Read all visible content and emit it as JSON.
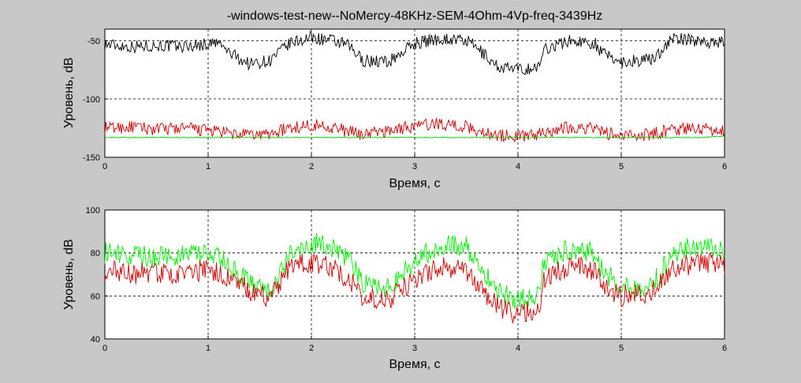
{
  "window": {
    "background": "#c8c8c8"
  },
  "title": "-windows-test-new--NoMercy-48KHz-SEM-4Ohm-4Vp-freq-3439Hz",
  "chart_data": [
    {
      "type": "line",
      "xlabel": "Время, с",
      "ylabel": "Уровень, dB",
      "xlim": [
        0,
        6
      ],
      "ylim": [
        -150,
        -40
      ],
      "xticks": [
        "0",
        "1",
        "2",
        "3",
        "4",
        "5",
        "6"
      ],
      "yticks": [
        "-150",
        "-100",
        "-50"
      ],
      "ytick_values": [
        -150,
        -100,
        -50
      ],
      "grid": true,
      "x": [
        0,
        0.25,
        0.5,
        0.75,
        1.0,
        1.1,
        1.2,
        1.4,
        1.6,
        1.7,
        1.8,
        2.0,
        2.2,
        2.35,
        2.5,
        2.75,
        3.0,
        3.25,
        3.5,
        3.6,
        3.8,
        4.0,
        4.2,
        4.25,
        4.5,
        4.75,
        4.8,
        5.0,
        5.3,
        5.5,
        5.75,
        6.0
      ],
      "series": [
        {
          "color": "#000000",
          "values": [
            -53,
            -55,
            -54,
            -55,
            -53,
            -52,
            -60,
            -70,
            -67,
            -59,
            -52,
            -47,
            -50,
            -54,
            -67,
            -68,
            -52,
            -48,
            -50,
            -56,
            -72,
            -75,
            -73,
            -57,
            -50,
            -52,
            -60,
            -68,
            -66,
            -48,
            -50,
            -52
          ]
        },
        {
          "color": "#cc0000",
          "values": [
            -125,
            -124,
            -126,
            -125,
            -127,
            -128,
            -130,
            -131,
            -130,
            -127,
            -125,
            -122,
            -124,
            -128,
            -130,
            -127,
            -123,
            -121,
            -124,
            -127,
            -131,
            -132,
            -130,
            -128,
            -124,
            -125,
            -128,
            -132,
            -130,
            -126,
            -125,
            -127
          ]
        },
        {
          "color": "#00cc00",
          "values": [
            -133,
            -133,
            -133,
            -133,
            -133,
            -133,
            -133,
            -133,
            -133,
            -133,
            -133,
            -133,
            -133,
            -133,
            -133,
            -133,
            -133,
            -133,
            -133,
            -133,
            -133,
            -133,
            -133,
            -133,
            -133,
            -133,
            -133,
            -133,
            -133,
            -133,
            -133,
            -132
          ]
        }
      ]
    },
    {
      "type": "line",
      "xlabel": "Время, с",
      "ylabel": "Уровень, dB",
      "xlim": [
        0,
        6
      ],
      "ylim": [
        40,
        100
      ],
      "xticks": [
        "0",
        "1",
        "2",
        "3",
        "4",
        "5",
        "6"
      ],
      "yticks": [
        "40",
        "60",
        "80",
        "100"
      ],
      "ytick_values": [
        40,
        60,
        80,
        100
      ],
      "grid": true,
      "x": [
        0,
        0.25,
        0.5,
        0.75,
        1.0,
        1.1,
        1.2,
        1.4,
        1.6,
        1.7,
        1.8,
        2.0,
        2.2,
        2.35,
        2.5,
        2.75,
        3.0,
        3.25,
        3.5,
        3.6,
        3.8,
        4.0,
        4.2,
        4.25,
        4.5,
        4.75,
        4.8,
        5.0,
        5.3,
        5.5,
        5.75,
        6.0
      ],
      "series": [
        {
          "color": "#00ee00",
          "values": [
            80,
            79,
            78,
            79,
            79,
            78,
            74,
            66,
            62,
            70,
            80,
            85,
            83,
            78,
            66,
            64,
            76,
            84,
            83,
            76,
            62,
            58,
            61,
            76,
            82,
            80,
            73,
            64,
            65,
            80,
            84,
            82
          ]
        },
        {
          "color": "#cc0000",
          "values": [
            72,
            70,
            71,
            70,
            72,
            71,
            68,
            62,
            59,
            66,
            74,
            76,
            73,
            68,
            60,
            58,
            68,
            74,
            72,
            66,
            55,
            51,
            54,
            68,
            74,
            72,
            66,
            60,
            62,
            72,
            76,
            74
          ]
        }
      ]
    }
  ]
}
